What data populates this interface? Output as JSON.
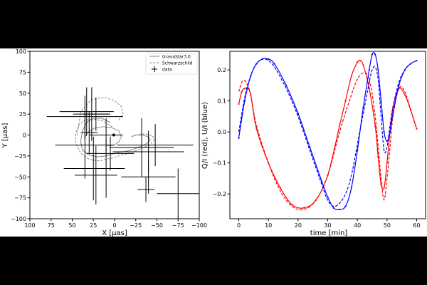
{
  "chart_data": [
    {
      "type": "scatter",
      "xlabel": "X [μas]",
      "ylabel": "Y [μas]",
      "xlim": [
        100,
        -100
      ],
      "ylim": [
        -100,
        100
      ],
      "x_ticks": [
        100,
        75,
        50,
        25,
        0,
        -25,
        -50,
        -75,
        -100
      ],
      "x_tick_labels": [
        "100",
        "75",
        "50",
        "25",
        "0",
        "−25",
        "−50",
        "−75",
        "−100"
      ],
      "y_ticks": [
        100,
        75,
        50,
        25,
        0,
        -25,
        -50,
        -75,
        -100
      ],
      "y_tick_labels": [
        "100",
        "75",
        "50",
        "25",
        "0",
        "−25",
        "−50",
        "−75",
        "−100"
      ],
      "grid": false,
      "legend_position": "top-right",
      "legend": [
        {
          "label": "GravaStar3.0",
          "style": "solid",
          "color": "#808080"
        },
        {
          "label": "Schwarzschild",
          "style": "dashed",
          "color": "#808080"
        },
        {
          "label": "data",
          "style": "errorbar",
          "color": "#000000"
        }
      ],
      "center_marker": [
        1,
        0
      ],
      "data": [
        {
          "x": 33,
          "y": 28,
          "xerr": 32,
          "yerr": 29
        },
        {
          "x": 35,
          "y": 22,
          "xerr": 45,
          "yerr": 25
        },
        {
          "x": 27,
          "y": 25,
          "xerr": 22,
          "yerr": 32
        },
        {
          "x": 22,
          "y": 25,
          "xerr": 15,
          "yerr": 20
        },
        {
          "x": 30,
          "y": 3,
          "xerr": 10,
          "yerr": 25
        },
        {
          "x": 10,
          "y": 0,
          "xerr": 20,
          "yerr": 20
        },
        {
          "x": 35,
          "y": -12,
          "xerr": 35,
          "yerr": 40
        },
        {
          "x": 25,
          "y": -40,
          "xerr": 35,
          "yerr": 38
        },
        {
          "x": 22,
          "y": -48,
          "xerr": 25,
          "yerr": 35
        },
        {
          "x": 10,
          "y": -40,
          "xerr": 22,
          "yerr": 35
        },
        {
          "x": 5,
          "y": -22,
          "xerr": 28,
          "yerr": 20
        },
        {
          "x": -32,
          "y": -15,
          "xerr": 38,
          "yerr": 35
        },
        {
          "x": -40,
          "y": -20,
          "xerr": 42,
          "yerr": 25
        },
        {
          "x": -48,
          "y": -12,
          "xerr": 45,
          "yerr": 25
        },
        {
          "x": -40,
          "y": -50,
          "xerr": 32,
          "yerr": 20
        },
        {
          "x": -37,
          "y": -65,
          "xerr": 10,
          "yerr": 15
        },
        {
          "x": -75,
          "y": -70,
          "xerr": 25,
          "yerr": 30
        }
      ],
      "curve_solid": [
        [
          5,
          15
        ],
        [
          15,
          20
        ],
        [
          25,
          20
        ],
        [
          33,
          15
        ],
        [
          38,
          5
        ],
        [
          40,
          -8
        ],
        [
          38,
          -18
        ],
        [
          30,
          -24
        ],
        [
          20,
          -26
        ],
        [
          10,
          -25
        ],
        [
          0,
          -22
        ],
        [
          -10,
          -20
        ],
        [
          -20,
          -18
        ],
        [
          -30,
          -14
        ],
        [
          -38,
          -10
        ],
        [
          -42,
          -6
        ],
        [
          -40,
          -2
        ],
        [
          -33,
          0
        ],
        [
          -25,
          0
        ],
        [
          -20,
          -2
        ]
      ],
      "curve_dashed": [
        [
          3,
          10
        ],
        [
          14,
          17
        ],
        [
          24,
          19
        ],
        [
          35,
          18
        ],
        [
          42,
          12
        ],
        [
          46,
          2
        ],
        [
          46,
          -10
        ],
        [
          40,
          -22
        ],
        [
          30,
          -29
        ],
        [
          18,
          -31
        ],
        [
          5,
          -28
        ],
        [
          -8,
          -24
        ],
        [
          -20,
          -21
        ],
        [
          -32,
          -16
        ],
        [
          -42,
          -11
        ],
        [
          -47,
          -6
        ],
        [
          -45,
          -1
        ],
        [
          -38,
          1
        ],
        [
          -30,
          1
        ],
        [
          -22,
          -1
        ]
      ],
      "curve_inner": [
        [
          36,
          -5
        ],
        [
          32,
          3
        ],
        [
          24,
          8
        ],
        [
          14,
          10
        ],
        [
          4,
          9
        ],
        [
          -5,
          5
        ],
        [
          -8,
          -2
        ],
        [
          -5,
          -8
        ],
        [
          0,
          -12
        ],
        [
          8,
          -13
        ]
      ],
      "curve_outer_top": [
        [
          44,
          0
        ],
        [
          40,
          28
        ],
        [
          28,
          42
        ],
        [
          12,
          45
        ],
        [
          0,
          41
        ],
        [
          -8,
          34
        ],
        [
          -10,
          25
        ],
        [
          -5,
          18
        ]
      ]
    },
    {
      "type": "line",
      "xlabel": "time [min]",
      "ylabel": "Q/I (red), U/I (blue)",
      "xlim": [
        -3,
        63
      ],
      "ylim": [
        -0.28,
        0.26
      ],
      "x_ticks": [
        0,
        10,
        20,
        30,
        40,
        50,
        60
      ],
      "y_ticks": [
        -0.2,
        -0.1,
        0.0,
        0.1,
        0.2
      ],
      "y_tick_labels": [
        "−0.2",
        "−0.1",
        "0.0",
        "0.1",
        "0.2"
      ],
      "grid": false,
      "series": [
        {
          "color": "#ff0000",
          "style": "solid",
          "x": [
            0,
            1,
            2,
            3,
            4,
            6,
            10,
            14,
            18,
            22,
            26,
            30,
            34,
            36,
            38,
            40,
            41,
            42,
            44,
            46,
            47,
            48,
            49,
            50,
            51,
            52,
            54,
            56,
            58,
            60
          ],
          "y": [
            0.09,
            0.13,
            0.14,
            0.14,
            0.12,
            0.01,
            -0.1,
            -0.18,
            -0.235,
            -0.245,
            -0.22,
            -0.14,
            0.02,
            0.1,
            0.18,
            0.225,
            0.23,
            0.215,
            0.14,
            0.02,
            -0.08,
            -0.17,
            -0.18,
            -0.1,
            0.0,
            0.08,
            0.14,
            0.12,
            0.07,
            0.01
          ]
        },
        {
          "color": "#ff0000",
          "style": "dashed",
          "x": [
            0,
            1,
            2,
            3,
            4,
            6,
            10,
            14,
            18,
            22,
            26,
            30,
            34,
            38,
            40,
            42,
            44,
            46,
            48,
            49,
            50,
            51,
            52,
            54,
            56,
            58,
            60
          ],
          "y": [
            0.13,
            0.16,
            0.165,
            0.15,
            0.12,
            0.02,
            -0.1,
            -0.19,
            -0.24,
            -0.25,
            -0.22,
            -0.14,
            0.0,
            0.12,
            0.17,
            0.19,
            0.17,
            0.05,
            -0.15,
            -0.22,
            -0.15,
            -0.05,
            0.05,
            0.14,
            0.13,
            0.07,
            0.01
          ]
        },
        {
          "color": "#0000ff",
          "style": "solid",
          "x": [
            0,
            2,
            4,
            6,
            8,
            10,
            12,
            16,
            20,
            24,
            28,
            30,
            32,
            34,
            36,
            38,
            40,
            42,
            44,
            45,
            46,
            47,
            48,
            49,
            50,
            51,
            52,
            54,
            56,
            58,
            60
          ],
          "y": [
            -0.02,
            0.1,
            0.18,
            0.22,
            0.235,
            0.235,
            0.22,
            0.15,
            0.06,
            -0.05,
            -0.16,
            -0.21,
            -0.245,
            -0.25,
            -0.24,
            -0.18,
            -0.06,
            0.08,
            0.2,
            0.25,
            0.25,
            0.2,
            0.1,
            0.0,
            -0.03,
            0.0,
            0.06,
            0.15,
            0.2,
            0.22,
            0.23
          ]
        },
        {
          "color": "#0000ff",
          "style": "dashed",
          "x": [
            0,
            2,
            4,
            6,
            8,
            10,
            12,
            16,
            20,
            24,
            28,
            30,
            32,
            34,
            36,
            38,
            40,
            42,
            44,
            45,
            46,
            47,
            48,
            49,
            50,
            51,
            52,
            54,
            56,
            58,
            60
          ],
          "y": [
            0.0,
            0.11,
            0.18,
            0.22,
            0.235,
            0.23,
            0.21,
            0.14,
            0.05,
            -0.06,
            -0.17,
            -0.22,
            -0.24,
            -0.23,
            -0.2,
            -0.14,
            -0.04,
            0.06,
            0.16,
            0.2,
            0.21,
            0.17,
            0.05,
            -0.06,
            -0.05,
            0.02,
            0.08,
            0.16,
            0.2,
            0.22,
            0.23
          ]
        }
      ]
    }
  ]
}
